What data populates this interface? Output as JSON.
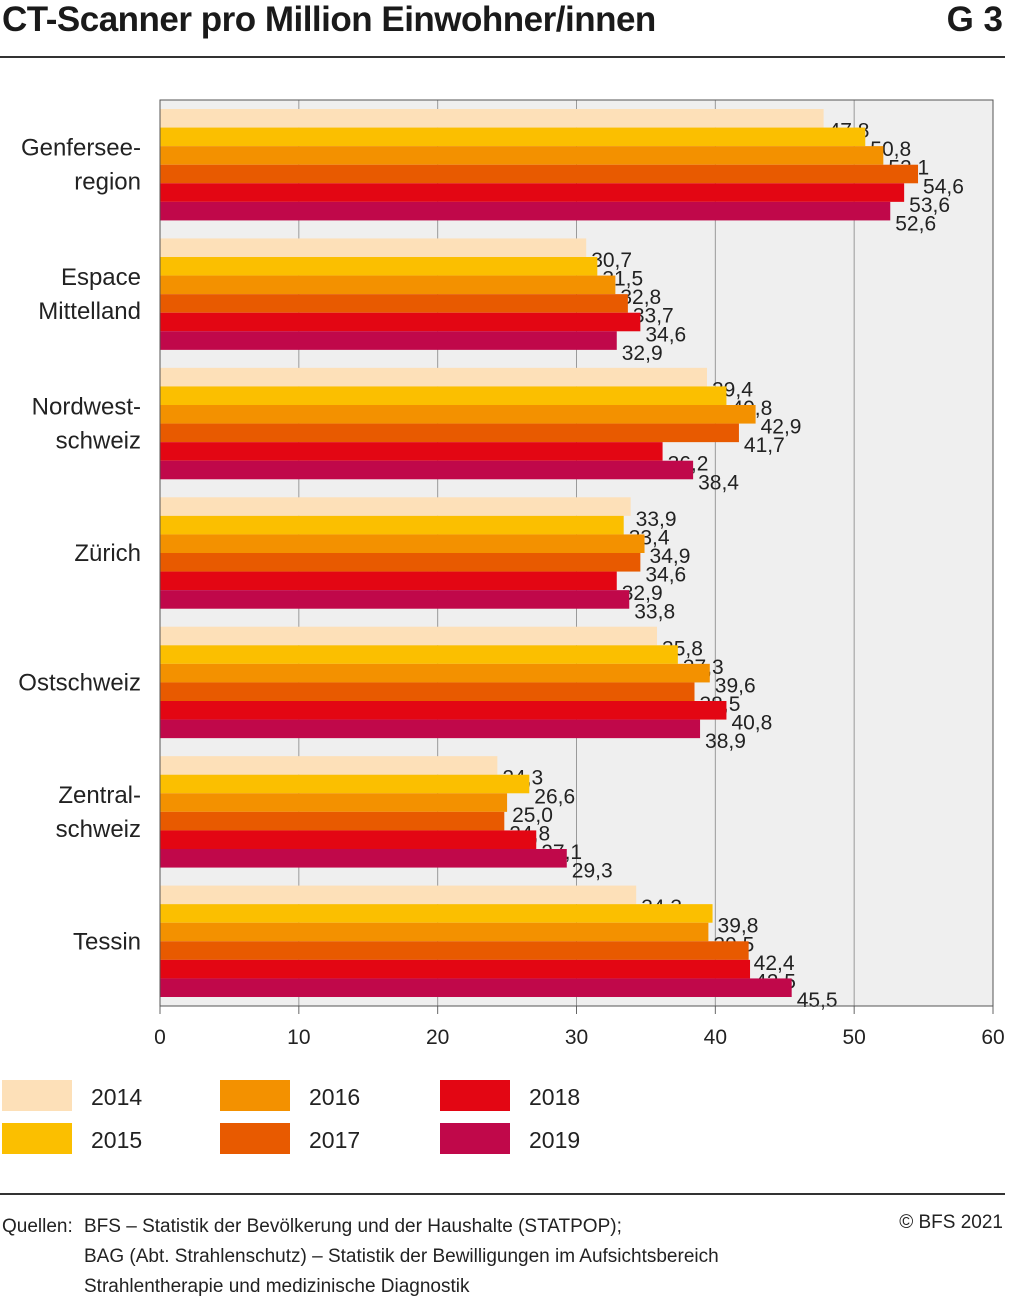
{
  "header": {
    "title": "CT-Scanner pro Million Einwohner/innen",
    "code": "G 3"
  },
  "chart_data": {
    "type": "bar",
    "orientation": "horizontal",
    "categories": [
      [
        "Genfersee-",
        "region"
      ],
      [
        "Espace",
        "Mittelland"
      ],
      [
        "Nordwest-",
        "schweiz"
      ],
      [
        "Zürich"
      ],
      [
        "Ostschweiz"
      ],
      [
        "Zentral-",
        "schweiz"
      ],
      [
        "Tessin"
      ]
    ],
    "series": [
      {
        "name": "2014",
        "color": "#fde0b8",
        "values": [
          47.8,
          30.7,
          39.4,
          33.9,
          35.8,
          24.3,
          34.3
        ]
      },
      {
        "name": "2015",
        "color": "#fbbf00",
        "values": [
          50.8,
          31.5,
          40.8,
          33.4,
          37.3,
          26.6,
          39.8
        ]
      },
      {
        "name": "2016",
        "color": "#f39100",
        "values": [
          52.1,
          32.8,
          42.9,
          34.9,
          39.6,
          25.0,
          39.5
        ]
      },
      {
        "name": "2017",
        "color": "#e85a00",
        "values": [
          54.6,
          33.7,
          41.7,
          34.6,
          38.5,
          24.8,
          42.4
        ]
      },
      {
        "name": "2018",
        "color": "#e30613",
        "values": [
          53.6,
          34.6,
          36.2,
          32.9,
          40.8,
          27.1,
          42.5
        ]
      },
      {
        "name": "2019",
        "color": "#c0084a",
        "values": [
          52.6,
          32.9,
          38.4,
          33.8,
          38.9,
          29.3,
          45.5
        ]
      }
    ],
    "xlim": [
      0,
      60
    ],
    "xticks": [
      0,
      10,
      20,
      30,
      40,
      50,
      60
    ],
    "grid": true,
    "legend_position": "bottom"
  },
  "footer": {
    "sources_label": "Quellen:",
    "sources": [
      "BFS – Statistik der Bevölkerung und der Haushalte (STATPOP);",
      "BAG (Abt. Strahlenschutz) – Statistik der Bewilligungen im Aufsichtsbereich",
      "Strahlentherapie und medizinische Diagnostik"
    ],
    "copyright": "© BFS 2021"
  }
}
